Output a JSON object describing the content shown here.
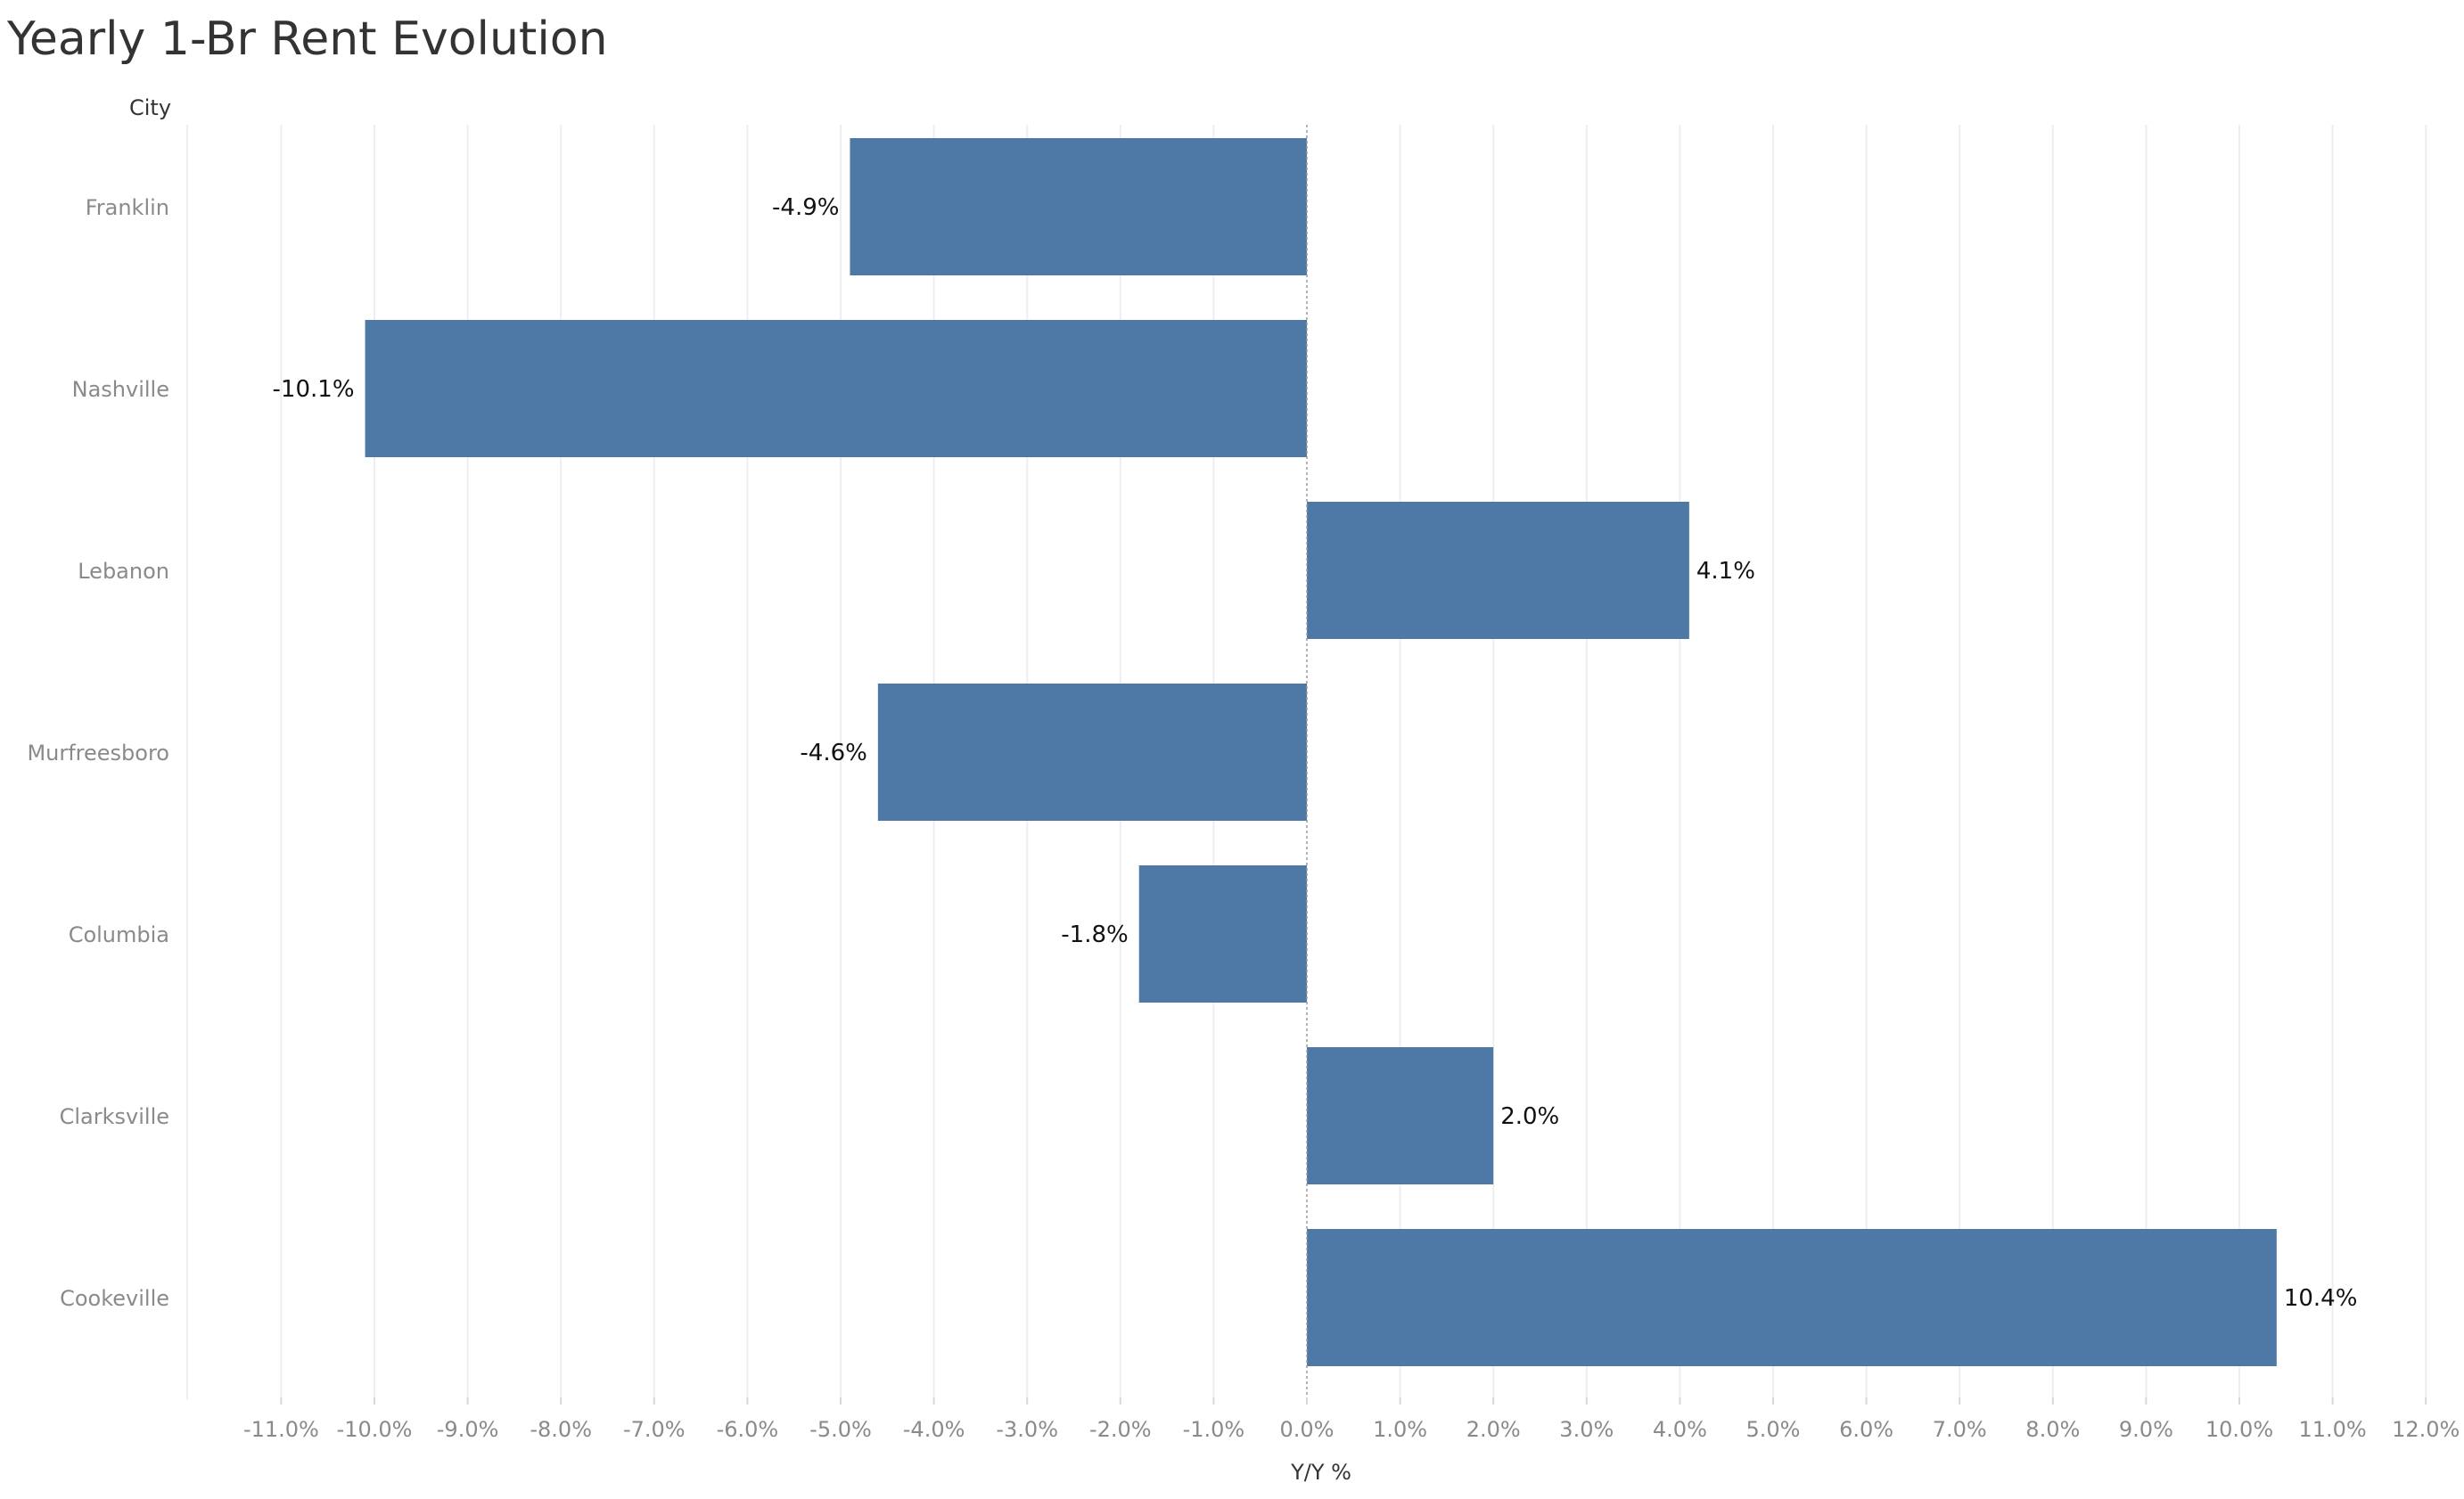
{
  "chart_data": {
    "type": "bar",
    "orientation": "horizontal",
    "title": "Yearly 1-Br Rent Evolution",
    "category_axis_title": "City",
    "value_axis_title": "Y/Y %",
    "categories": [
      "Franklin",
      "Nashville",
      "Lebanon",
      "Murfreesboro",
      "Columbia",
      "Clarksville",
      "Cookeville"
    ],
    "values": [
      -4.9,
      -10.1,
      4.1,
      -4.6,
      -1.8,
      2.0,
      10.4
    ],
    "data_labels": [
      "-4.9%",
      "-10.1%",
      "4.1%",
      "-4.6%",
      "-1.8%",
      "2.0%",
      "10.4%"
    ],
    "xlim": [
      -12,
      12
    ],
    "x_ticks": [
      -11,
      -10,
      -9,
      -8,
      -7,
      -6,
      -5,
      -4,
      -3,
      -2,
      -1,
      0,
      1,
      2,
      3,
      4,
      5,
      6,
      7,
      8,
      9,
      10,
      11,
      12
    ],
    "x_tick_labels": [
      "-11.0%",
      "-10.0%",
      "-9.0%",
      "-8.0%",
      "-7.0%",
      "-6.0%",
      "-5.0%",
      "-4.0%",
      "-3.0%",
      "-2.0%",
      "-1.0%",
      "0.0%",
      "1.0%",
      "2.0%",
      "3.0%",
      "4.0%",
      "5.0%",
      "6.0%",
      "7.0%",
      "8.0%",
      "9.0%",
      "10.0%",
      "11.0%",
      "12.0%"
    ],
    "grid": true,
    "legend": "none",
    "bar_color": "#4e79a7",
    "grid_color": "#eeeeee",
    "zero_line_color": "#9a9a9a"
  }
}
